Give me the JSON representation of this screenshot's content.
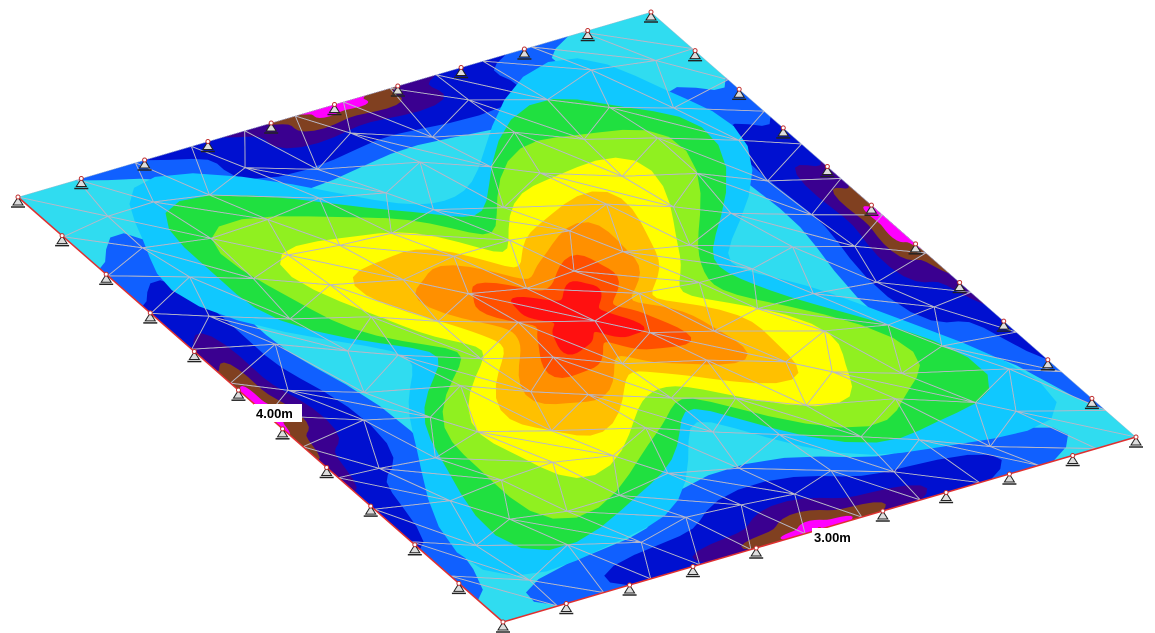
{
  "labels": {
    "edge_left": "4.00m",
    "edge_right": "3.00m"
  }
}
